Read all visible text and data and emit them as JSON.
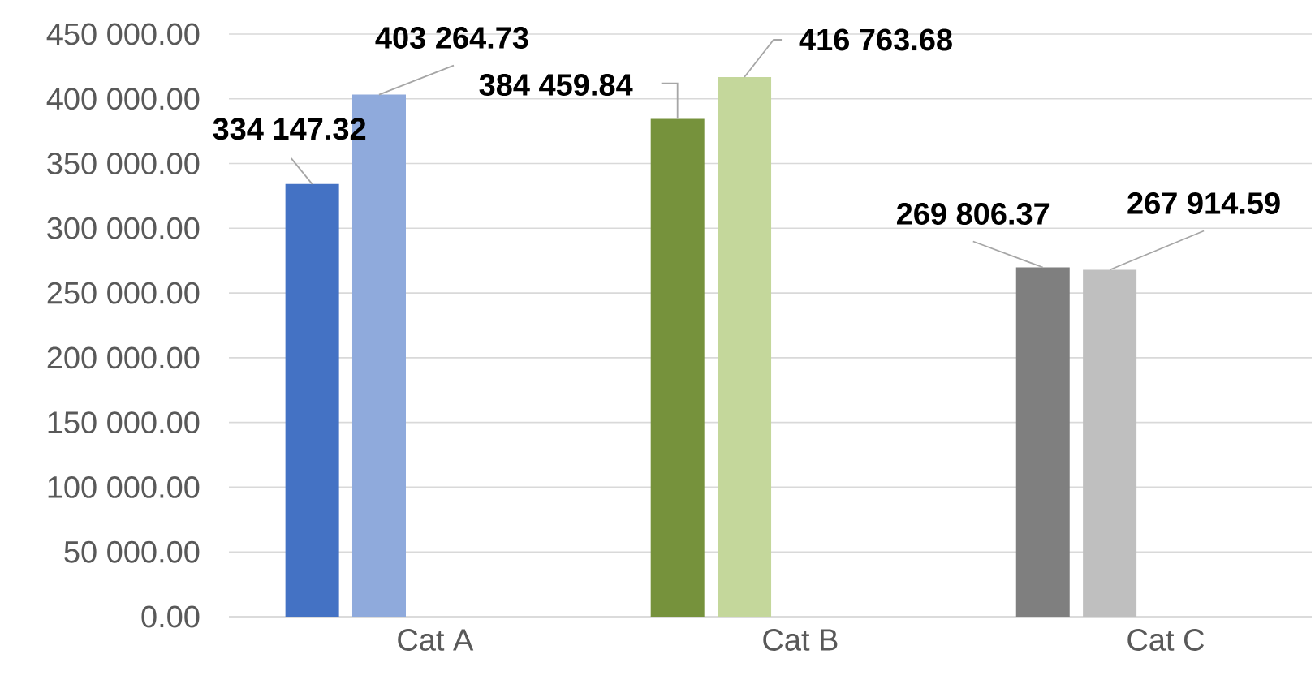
{
  "chart_data": {
    "type": "bar",
    "categories": [
      "Cat A",
      "Cat B",
      "Cat C"
    ],
    "series": [
      {
        "colors": [
          "#4472c4",
          "#76923c",
          "#7f7f7f"
        ],
        "values": [
          334147.32,
          384459.84,
          269806.37
        ],
        "value_labels": [
          "334 147.32",
          "384 459.84",
          "269 806.37"
        ]
      },
      {
        "colors": [
          "#8faadc",
          "#c4d79b",
          "#bfbfbf"
        ],
        "values": [
          403264.73,
          416763.68,
          267914.59
        ],
        "value_labels": [
          "403 264.73",
          "416 763.68",
          "267 914.59"
        ]
      }
    ],
    "ylim": [
      0,
      450000
    ],
    "yticks": [
      {
        "value": 0,
        "label": "0.00"
      },
      {
        "value": 50000,
        "label": "50 000.00"
      },
      {
        "value": 100000,
        "label": "100 000.00"
      },
      {
        "value": 150000,
        "label": "150 000.00"
      },
      {
        "value": 200000,
        "label": "200 000.00"
      },
      {
        "value": 250000,
        "label": "250 000.00"
      },
      {
        "value": 300000,
        "label": "300 000.00"
      },
      {
        "value": 350000,
        "label": "350 000.00"
      },
      {
        "value": 400000,
        "label": "400 000.00"
      },
      {
        "value": 450000,
        "label": "450 000.00"
      }
    ],
    "grid": "y"
  }
}
